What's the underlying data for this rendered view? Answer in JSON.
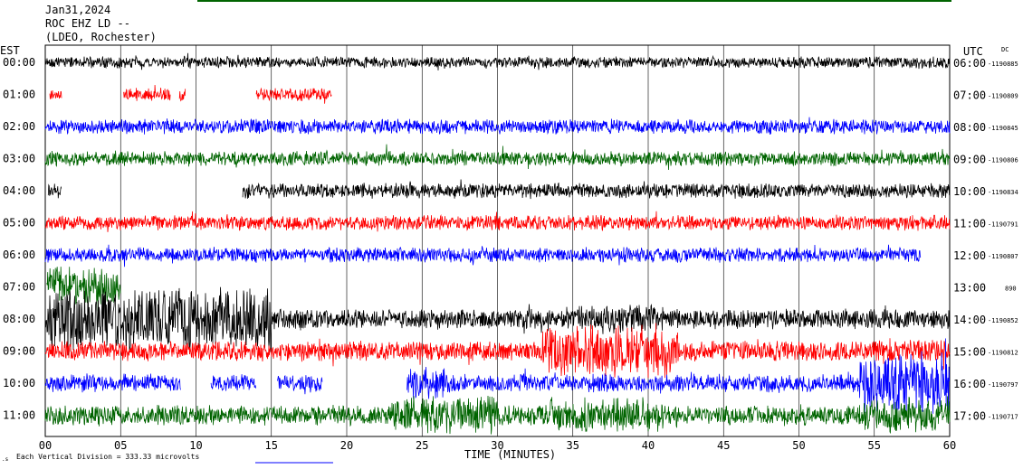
{
  "header": {
    "date": "Jan31,2024",
    "station": "ROC EHZ LD --",
    "network": "(LDEO, Rochester)",
    "left_tz": "EST",
    "right_tz": "UTC",
    "dc_label": "DC"
  },
  "footer": {
    "x_axis_label": "TIME (MINUTES)",
    "scale_note": "Each Vertical Division = 333.33 microvolts"
  },
  "colors": {
    "black": "#000000",
    "red": "#ff0000",
    "blue": "#0000ff",
    "green": "#006400",
    "grid": "#000000"
  },
  "chart_data": {
    "type": "line",
    "title": "Jan31,2024 ROC EHZ LD -- (LDEO, Rochester)",
    "xlabel": "TIME (MINUTES)",
    "xlim": [
      0,
      60
    ],
    "x_ticks": [
      "00",
      "05",
      "10",
      "15",
      "20",
      "25",
      "30",
      "35",
      "40",
      "45",
      "50",
      "55",
      "60"
    ],
    "grid": true,
    "series": [
      {
        "local": "00:00",
        "utc": "06:00",
        "dc": "-1190885",
        "color": "black",
        "segments": [
          [
            0,
            60
          ]
        ],
        "amp": 7,
        "events": []
      },
      {
        "local": "01:00",
        "utc": "07:00",
        "dc": "-1190809",
        "color": "red",
        "segments": [
          [
            0.3,
            1.1
          ],
          [
            5.2,
            8.3
          ],
          [
            8.9,
            9.3
          ],
          [
            14.0,
            19.0
          ]
        ],
        "amp": 8,
        "events": []
      },
      {
        "local": "02:00",
        "utc": "08:00",
        "dc": "-1190845",
        "color": "blue",
        "segments": [
          [
            0,
            60
          ]
        ],
        "amp": 9,
        "events": []
      },
      {
        "local": "03:00",
        "utc": "09:00",
        "dc": "-1190806",
        "color": "green",
        "segments": [
          [
            0,
            60
          ]
        ],
        "amp": 9,
        "events": []
      },
      {
        "local": "04:00",
        "utc": "10:00",
        "dc": "-1190834",
        "color": "black",
        "segments": [
          [
            0.2,
            1.1
          ],
          [
            13.1,
            60
          ]
        ],
        "amp": 9,
        "events": []
      },
      {
        "local": "05:00",
        "utc": "11:00",
        "dc": "-1190791",
        "color": "red",
        "segments": [
          [
            0,
            60
          ]
        ],
        "amp": 9,
        "events": []
      },
      {
        "local": "06:00",
        "utc": "12:00",
        "dc": "-1190807",
        "color": "blue",
        "segments": [
          [
            0,
            58.1
          ]
        ],
        "amp": 9,
        "events": []
      },
      {
        "local": "07:00",
        "utc": "13:00",
        "dc": "890",
        "color": "green",
        "segments": [
          [
            0.1,
            5.0
          ]
        ],
        "amp": 26,
        "events": []
      },
      {
        "local": "08:00",
        "utc": "14:00",
        "dc": "-1190852",
        "color": "black",
        "segments": [
          [
            0,
            60
          ]
        ],
        "amp": 12,
        "events": [
          [
            0.1,
            15.0,
            3.2
          ],
          [
            34.5,
            41.0,
            1.4
          ]
        ]
      },
      {
        "local": "09:00",
        "utc": "15:00",
        "dc": "-1190812",
        "color": "red",
        "segments": [
          [
            0,
            60
          ]
        ],
        "amp": 12,
        "events": [
          [
            33.0,
            42.0,
            2.6
          ],
          [
            55.0,
            60.0,
            1.2
          ]
        ]
      },
      {
        "local": "10:00",
        "utc": "16:00",
        "dc": "-1190797",
        "color": "blue",
        "segments": [
          [
            0,
            9.0
          ],
          [
            11.0,
            14.0
          ],
          [
            15.4,
            18.4
          ],
          [
            24.0,
            60
          ]
        ],
        "amp": 11,
        "events": [
          [
            24.0,
            26.5,
            1.8
          ],
          [
            54.0,
            60.0,
            3.4
          ]
        ]
      },
      {
        "local": "11:00",
        "utc": "17:00",
        "dc": "-1190717",
        "color": "green",
        "segments": [
          [
            0,
            60
          ]
        ],
        "amp": 12,
        "events": [
          [
            23.0,
            30.0,
            2.0
          ],
          [
            33.5,
            41.0,
            1.8
          ],
          [
            54.0,
            60.0,
            1.8
          ]
        ]
      }
    ]
  }
}
